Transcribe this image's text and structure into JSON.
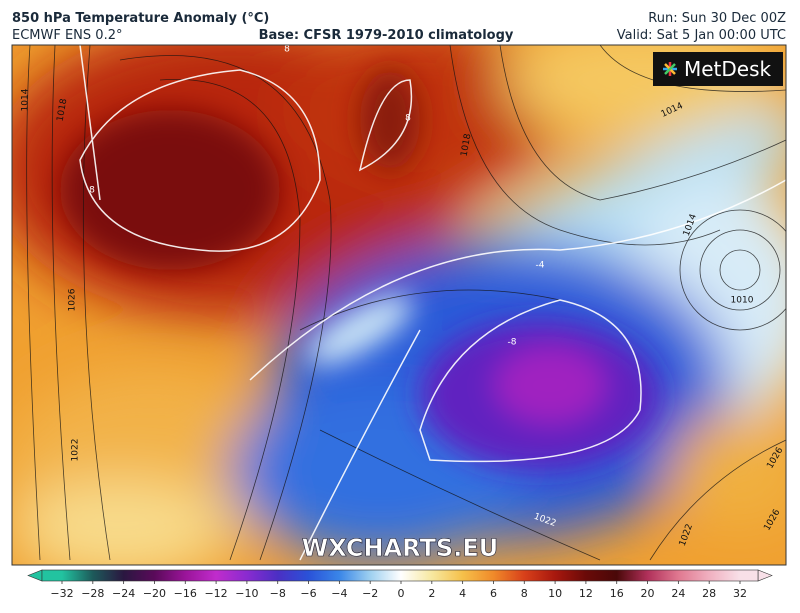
{
  "header": {
    "title": "850 hPa Temperature Anomaly (°C)",
    "model": "ECMWF ENS 0.2°",
    "base": "Base: CFSR 1979-2010 climatology",
    "run": "Run: Sun 30 Dec 00Z",
    "valid": "Valid: Sat 5 Jan 00:00 UTC"
  },
  "logo": "MetDesk",
  "watermark": "WXCHARTS.EU",
  "map_labels": [
    "1014",
    "1018",
    "1026",
    "1022",
    "8",
    "8",
    "1018",
    "8",
    "1014",
    "1014",
    "1010",
    "-4",
    "-8",
    "1022",
    "1026",
    "1026",
    "1022"
  ],
  "colorbar": {
    "ticks": [
      {
        "value": -32,
        "label": "−32"
      },
      {
        "value": -28,
        "label": "−28"
      },
      {
        "value": -24,
        "label": "−24"
      },
      {
        "value": -20,
        "label": "−20"
      },
      {
        "value": -16,
        "label": "−16"
      },
      {
        "value": -12,
        "label": "−12"
      },
      {
        "value": -10,
        "label": "−10"
      },
      {
        "value": -8,
        "label": "−8"
      },
      {
        "value": -6,
        "label": "−6"
      },
      {
        "value": -4,
        "label": "−4"
      },
      {
        "value": -2,
        "label": "−2"
      },
      0,
      2,
      4,
      6,
      8,
      10,
      12,
      16,
      20,
      24,
      28,
      32
    ],
    "colors": [
      "#22c3a0",
      "#1d5a5a",
      "#2a1740",
      "#5a0a5a",
      "#9a1499",
      "#c02ccc",
      "#8a2bd0",
      "#4b2fc4",
      "#2a52d8",
      "#3a86e8",
      "#9ed0f0",
      "#ffffff",
      "#f7e8a0",
      "#f5c04a",
      "#f08a2a",
      "#d8401a",
      "#a8180e",
      "#6a0a08",
      "#4a0808",
      "#b0305a",
      "#e07890",
      "#f0b0c0",
      "#f8e0e8"
    ]
  }
}
